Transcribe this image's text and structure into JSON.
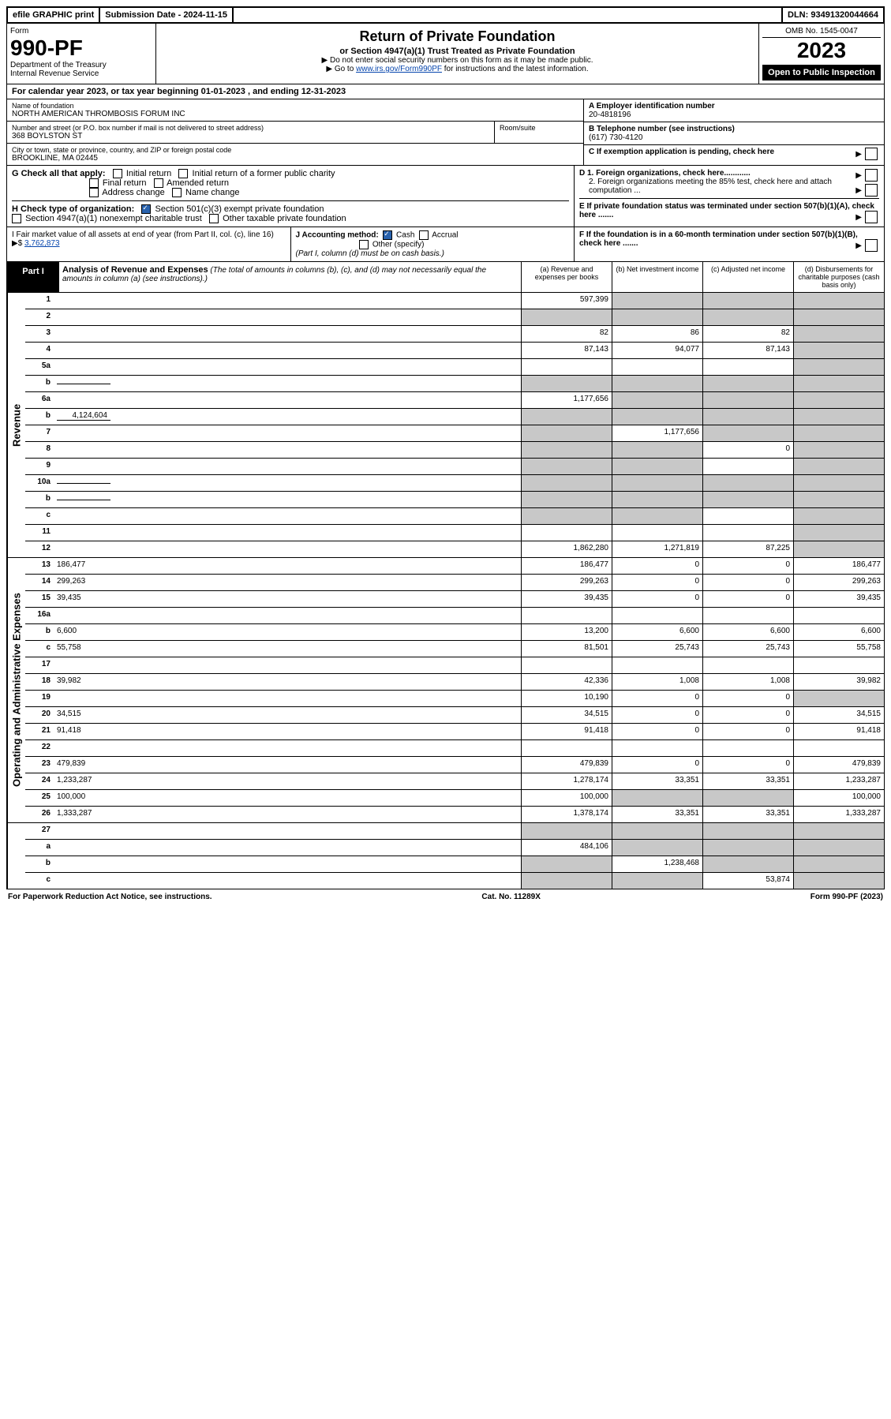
{
  "topbar": {
    "efile": "efile GRAPHIC print",
    "subdate": "Submission Date - 2024-11-15",
    "dln": "DLN: 93491320044664"
  },
  "header": {
    "form_label": "Form",
    "form_no": "990-PF",
    "dept": "Department of the Treasury",
    "irs": "Internal Revenue Service",
    "title": "Return of Private Foundation",
    "subtitle": "or Section 4947(a)(1) Trust Treated as Private Foundation",
    "note1": "▶ Do not enter social security numbers on this form as it may be made public.",
    "note2_pre": "▶ Go to ",
    "note2_link": "www.irs.gov/Form990PF",
    "note2_post": " for instructions and the latest information.",
    "omb": "OMB No. 1545-0047",
    "year": "2023",
    "open": "Open to Public Inspection"
  },
  "calyear": "For calendar year 2023, or tax year beginning 01-01-2023            , and ending 12-31-2023",
  "entity": {
    "name_lbl": "Name of foundation",
    "name": "NORTH AMERICAN THROMBOSIS FORUM INC",
    "addr_lbl": "Number and street (or P.O. box number if mail is not delivered to street address)",
    "addr": "368 BOYLSTON ST",
    "room_lbl": "Room/suite",
    "city_lbl": "City or town, state or province, country, and ZIP or foreign postal code",
    "city": "BROOKLINE, MA  02445",
    "a_lbl": "A Employer identification number",
    "a_val": "20-4818196",
    "b_lbl": "B Telephone number (see instructions)",
    "b_val": "(617) 730-4120",
    "c_lbl": "C If exemption application is pending, check here"
  },
  "checks": {
    "g_lbl": "G Check all that apply:",
    "g1": "Initial return",
    "g2": "Initial return of a former public charity",
    "g3": "Final return",
    "g4": "Amended return",
    "g5": "Address change",
    "g6": "Name change",
    "h_lbl": "H Check type of organization:",
    "h1": "Section 501(c)(3) exempt private foundation",
    "h2": "Section 4947(a)(1) nonexempt charitable trust",
    "h3": "Other taxable private foundation",
    "d1": "D 1. Foreign organizations, check here............",
    "d2": "2. Foreign organizations meeting the 85% test, check here and attach computation ...",
    "e": "E  If private foundation status was terminated under section 507(b)(1)(A), check here .......",
    "i_lbl": "I Fair market value of all assets at end of year (from Part II, col. (c), line 16) ▶$",
    "i_val": "3,762,873",
    "j_lbl": "J Accounting method:",
    "j1": "Cash",
    "j2": "Accrual",
    "j3": "Other (specify)",
    "j_note": "(Part I, column (d) must be on cash basis.)",
    "f": "F  If the foundation is in a 60-month termination under section 507(b)(1)(B), check here ......."
  },
  "part1": {
    "tab": "Part I",
    "title": "Analysis of Revenue and Expenses",
    "title_note": "(The total of amounts in columns (b), (c), and (d) may not necessarily equal the amounts in column (a) (see instructions).)",
    "col_a": "(a)   Revenue and expenses per books",
    "col_b": "(b)   Net investment income",
    "col_c": "(c)   Adjusted net income",
    "col_d": "(d)   Disbursements for charitable purposes (cash basis only)"
  },
  "sections": {
    "revenue": "Revenue",
    "expenses": "Operating and Administrative Expenses"
  },
  "rows": [
    {
      "n": "1",
      "d": "",
      "a": "597,399",
      "b": "",
      "c": "",
      "shade_b": true,
      "shade_c": true,
      "shade_d": true
    },
    {
      "n": "2",
      "d": "",
      "a": "",
      "b": "",
      "c": "",
      "shade_a": true,
      "shade_b": true,
      "shade_c": true,
      "shade_d": true,
      "html": true
    },
    {
      "n": "3",
      "d": "",
      "a": "82",
      "b": "86",
      "c": "82",
      "shade_d": true
    },
    {
      "n": "4",
      "d": "",
      "a": "87,143",
      "b": "94,077",
      "c": "87,143",
      "shade_d": true
    },
    {
      "n": "5a",
      "d": "",
      "a": "",
      "b": "",
      "c": "",
      "shade_d": true
    },
    {
      "n": "b",
      "d": "",
      "a": "",
      "b": "",
      "c": "",
      "shade_a": true,
      "shade_b": true,
      "shade_c": true,
      "shade_d": true,
      "inline": true
    },
    {
      "n": "6a",
      "d": "",
      "a": "1,177,656",
      "b": "",
      "c": "",
      "shade_b": true,
      "shade_c": true,
      "shade_d": true
    },
    {
      "n": "b",
      "d": "",
      "a": "",
      "b": "",
      "c": "",
      "shade_a": true,
      "shade_b": true,
      "shade_c": true,
      "shade_d": true,
      "inline": true,
      "inline_val": "4,124,604"
    },
    {
      "n": "7",
      "d": "",
      "a": "",
      "b": "1,177,656",
      "c": "",
      "shade_a": true,
      "shade_c": true,
      "shade_d": true
    },
    {
      "n": "8",
      "d": "",
      "a": "",
      "b": "",
      "c": "0",
      "shade_a": true,
      "shade_b": true,
      "shade_d": true
    },
    {
      "n": "9",
      "d": "",
      "a": "",
      "b": "",
      "c": "",
      "shade_a": true,
      "shade_b": true,
      "shade_d": true
    },
    {
      "n": "10a",
      "d": "",
      "a": "",
      "b": "",
      "c": "",
      "shade_a": true,
      "shade_b": true,
      "shade_c": true,
      "shade_d": true,
      "inline": true
    },
    {
      "n": "b",
      "d": "",
      "a": "",
      "b": "",
      "c": "",
      "shade_a": true,
      "shade_b": true,
      "shade_c": true,
      "shade_d": true,
      "inline": true
    },
    {
      "n": "c",
      "d": "",
      "a": "",
      "b": "",
      "c": "",
      "shade_a": true,
      "shade_b": true,
      "shade_d": true
    },
    {
      "n": "11",
      "d": "",
      "a": "",
      "b": "",
      "c": "",
      "shade_d": true
    },
    {
      "n": "12",
      "d": "",
      "a": "1,862,280",
      "b": "1,271,819",
      "c": "87,225",
      "shade_d": true,
      "html": true
    }
  ],
  "exp_rows": [
    {
      "n": "13",
      "d": "186,477",
      "a": "186,477",
      "b": "0",
      "c": "0"
    },
    {
      "n": "14",
      "d": "299,263",
      "a": "299,263",
      "b": "0",
      "c": "0"
    },
    {
      "n": "15",
      "d": "39,435",
      "a": "39,435",
      "b": "0",
      "c": "0"
    },
    {
      "n": "16a",
      "d": "",
      "a": "",
      "b": "",
      "c": ""
    },
    {
      "n": "b",
      "d": "6,600",
      "a": "13,200",
      "b": "6,600",
      "c": "6,600"
    },
    {
      "n": "c",
      "d": "55,758",
      "a": "81,501",
      "b": "25,743",
      "c": "25,743"
    },
    {
      "n": "17",
      "d": "",
      "a": "",
      "b": "",
      "c": ""
    },
    {
      "n": "18",
      "d": "39,982",
      "a": "42,336",
      "b": "1,008",
      "c": "1,008"
    },
    {
      "n": "19",
      "d": "",
      "a": "10,190",
      "b": "0",
      "c": "0",
      "shade_d": true
    },
    {
      "n": "20",
      "d": "34,515",
      "a": "34,515",
      "b": "0",
      "c": "0"
    },
    {
      "n": "21",
      "d": "91,418",
      "a": "91,418",
      "b": "0",
      "c": "0"
    },
    {
      "n": "22",
      "d": "",
      "a": "",
      "b": "",
      "c": ""
    },
    {
      "n": "23",
      "d": "479,839",
      "a": "479,839",
      "b": "0",
      "c": "0"
    },
    {
      "n": "24",
      "d": "1,233,287",
      "a": "1,278,174",
      "b": "33,351",
      "c": "33,351",
      "html": true
    },
    {
      "n": "25",
      "d": "100,000",
      "a": "100,000",
      "b": "",
      "c": "",
      "shade_b": true,
      "shade_c": true
    },
    {
      "n": "26",
      "d": "1,333,287",
      "a": "1,378,174",
      "b": "33,351",
      "c": "33,351",
      "html": true
    }
  ],
  "final_rows": [
    {
      "n": "27",
      "d": "",
      "a": "",
      "b": "",
      "c": "",
      "shade_a": true,
      "shade_b": true,
      "shade_c": true,
      "shade_d": true
    },
    {
      "n": "a",
      "d": "",
      "a": "484,106",
      "b": "",
      "c": "",
      "shade_b": true,
      "shade_c": true,
      "shade_d": true,
      "html": true
    },
    {
      "n": "b",
      "d": "",
      "a": "",
      "b": "1,238,468",
      "c": "",
      "shade_a": true,
      "shade_c": true,
      "shade_d": true,
      "html": true
    },
    {
      "n": "c",
      "d": "",
      "a": "",
      "b": "",
      "c": "53,874",
      "shade_a": true,
      "shade_b": true,
      "shade_d": true,
      "html": true
    }
  ],
  "footer": {
    "left": "For Paperwork Reduction Act Notice, see instructions.",
    "mid": "Cat. No. 11289X",
    "right": "Form 990-PF (2023)"
  }
}
